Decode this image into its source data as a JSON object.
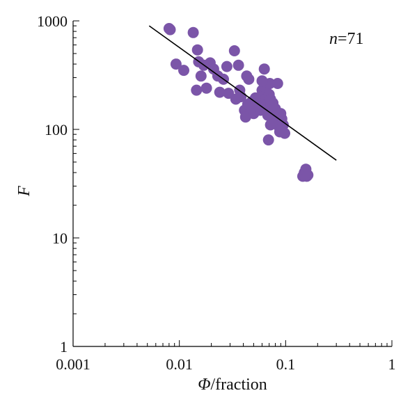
{
  "chart_data": {
    "type": "scatter",
    "xlabel": "Φ/fraction",
    "ylabel": "F",
    "xscale": "log",
    "yscale": "log",
    "xlim": [
      0.001,
      1
    ],
    "ylim": [
      1,
      1000
    ],
    "x_tick_labels": [
      "0.001",
      "0.01",
      "0.1",
      "1"
    ],
    "y_tick_labels": [
      "1",
      "10",
      "100",
      "1000"
    ],
    "annotation": "n=71",
    "marker_color": "#7b55a8",
    "line_color": "#000000",
    "grid": false,
    "series": [
      {
        "type": "scatter",
        "points": [
          [
            0.008,
            850
          ],
          [
            0.0082,
            830
          ],
          [
            0.0093,
            400
          ],
          [
            0.011,
            350
          ],
          [
            0.0135,
            780
          ],
          [
            0.0148,
            540
          ],
          [
            0.0152,
            420
          ],
          [
            0.0145,
            230
          ],
          [
            0.016,
            310
          ],
          [
            0.017,
            390
          ],
          [
            0.018,
            240
          ],
          [
            0.0195,
            410
          ],
          [
            0.021,
            360
          ],
          [
            0.023,
            310
          ],
          [
            0.024,
            220
          ],
          [
            0.026,
            290
          ],
          [
            0.028,
            380
          ],
          [
            0.029,
            215
          ],
          [
            0.033,
            530
          ],
          [
            0.036,
            390
          ],
          [
            0.037,
            230
          ],
          [
            0.038,
            200
          ],
          [
            0.041,
            150
          ],
          [
            0.042,
            130
          ],
          [
            0.043,
            310
          ],
          [
            0.045,
            290
          ],
          [
            0.046,
            165
          ],
          [
            0.048,
            180
          ],
          [
            0.05,
            140
          ],
          [
            0.054,
            175
          ],
          [
            0.056,
            160
          ],
          [
            0.058,
            150
          ],
          [
            0.06,
            230
          ],
          [
            0.062,
            205
          ],
          [
            0.063,
            360
          ],
          [
            0.065,
            240
          ],
          [
            0.065,
            190
          ],
          [
            0.066,
            170
          ],
          [
            0.067,
            155
          ],
          [
            0.068,
            145
          ],
          [
            0.069,
            80
          ],
          [
            0.07,
            210
          ],
          [
            0.071,
            265
          ],
          [
            0.072,
            190
          ],
          [
            0.073,
            170
          ],
          [
            0.074,
            130
          ],
          [
            0.075,
            160
          ],
          [
            0.076,
            175
          ],
          [
            0.078,
            140
          ],
          [
            0.079,
            125
          ],
          [
            0.08,
            155
          ],
          [
            0.082,
            130
          ],
          [
            0.084,
            265
          ],
          [
            0.085,
            135
          ],
          [
            0.087,
            105
          ],
          [
            0.088,
            95
          ],
          [
            0.09,
            140
          ],
          [
            0.092,
            125
          ],
          [
            0.095,
            110
          ],
          [
            0.098,
            92
          ],
          [
            0.06,
            280
          ],
          [
            0.052,
            195
          ],
          [
            0.044,
            170
          ],
          [
            0.034,
            190
          ],
          [
            0.072,
            110
          ],
          [
            0.068,
            135
          ],
          [
            0.145,
            37
          ],
          [
            0.15,
            40
          ],
          [
            0.155,
            43
          ],
          [
            0.158,
            37
          ],
          [
            0.162,
            38
          ]
        ]
      },
      {
        "type": "line",
        "x": [
          0.0052,
          0.3
        ],
        "y": [
          900,
          52
        ]
      }
    ]
  }
}
